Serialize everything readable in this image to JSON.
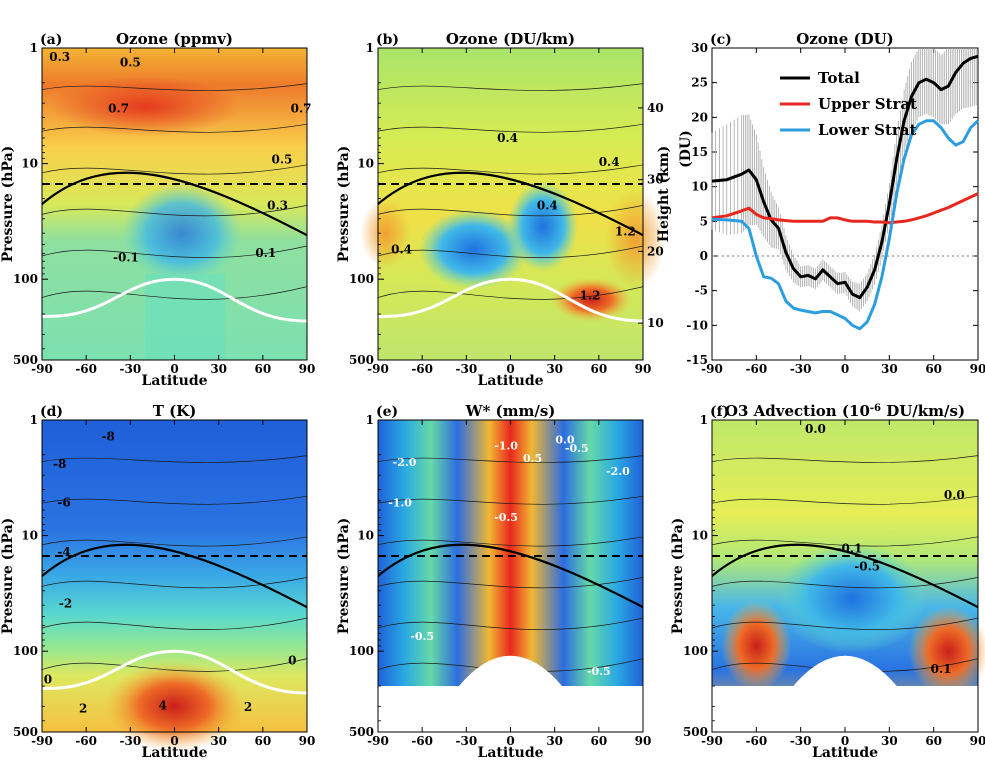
{
  "chart_data": [
    {
      "panel": "(a)",
      "type": "heatmap",
      "title": "Ozone (ppmv)",
      "xlabel": "Latitude",
      "ylabel": "Pressure (hPa)",
      "xlim": [
        -90,
        90
      ],
      "xticks": [
        "-90",
        "-60",
        "-30",
        "0",
        "30",
        "60",
        "90"
      ],
      "yscale": "log",
      "ylim": [
        500,
        1
      ],
      "yticks": [
        "1",
        "10",
        "100",
        "500"
      ],
      "contour_labels": [
        {
          "text": "0.3",
          "x": -78,
          "p": 1.3
        },
        {
          "text": "0.5",
          "x": -30,
          "p": 1.45
        },
        {
          "text": "0.7",
          "x": -38,
          "p": 3.6
        },
        {
          "text": "0.7",
          "x": 86,
          "p": 3.6
        },
        {
          "text": "0.5",
          "x": 73,
          "p": 10
        },
        {
          "text": "0.3",
          "x": 70,
          "p": 25
        },
        {
          "text": "0.1",
          "x": 62,
          "p": 64
        },
        {
          "text": "-0.1",
          "x": -33,
          "p": 70
        }
      ],
      "reference_line_hPa": 15
    },
    {
      "panel": "(b)",
      "type": "heatmap",
      "title": "Ozone (DU/km)",
      "xlabel": "Latitude",
      "ylabel": "Pressure (hPa)",
      "y2label": "Height (km)",
      "xlim": [
        -90,
        90
      ],
      "xticks": [
        "-90",
        "-60",
        "-30",
        "0",
        "30",
        "60",
        "90"
      ],
      "yscale": "log",
      "ylim": [
        500,
        1
      ],
      "yticks": [
        "1",
        "10",
        "100",
        "500"
      ],
      "y2ticks": [
        "10",
        "20",
        "30",
        "40"
      ],
      "contour_labels": [
        {
          "text": "0.4",
          "x": -2,
          "p": 6.5
        },
        {
          "text": "0.4",
          "x": 67,
          "p": 10.5
        },
        {
          "text": "0.4",
          "x": 25,
          "p": 25
        },
        {
          "text": "0.4",
          "x": -74,
          "p": 60
        },
        {
          "text": "1.2",
          "x": 78,
          "p": 42
        },
        {
          "text": "1.2",
          "x": 54,
          "p": 150
        }
      ],
      "reference_line_hPa": 15
    },
    {
      "panel": "(c)",
      "type": "line",
      "title": "Ozone (DU)",
      "xlabel": "",
      "ylabel": "(DU)",
      "xlim": [
        -90,
        90
      ],
      "ylim": [
        -15,
        30
      ],
      "xticks": [
        "-90",
        "-60",
        "-30",
        "0",
        "30",
        "60",
        "90"
      ],
      "yticks": [
        "-15",
        "-10",
        "-5",
        "0",
        "5",
        "10",
        "15",
        "20",
        "25",
        "30"
      ],
      "x": [
        -90,
        -80,
        -70,
        -65,
        -60,
        -55,
        -50,
        -45,
        -40,
        -35,
        -30,
        -25,
        -20,
        -15,
        -10,
        -5,
        0,
        5,
        10,
        15,
        20,
        25,
        30,
        35,
        40,
        45,
        50,
        55,
        60,
        65,
        70,
        75,
        80,
        85,
        90
      ],
      "series": [
        {
          "name": "Total",
          "color": "#000000",
          "values": [
            10.8,
            11.0,
            11.8,
            12.4,
            11.0,
            7.8,
            5.2,
            4.0,
            0.5,
            -1.8,
            -3.0,
            -2.8,
            -3.3,
            -2.0,
            -3.0,
            -4.0,
            -3.8,
            -5.5,
            -6.0,
            -4.5,
            -2.0,
            2.0,
            7.5,
            14.0,
            19.5,
            23.0,
            25.0,
            25.5,
            25.0,
            24.0,
            24.5,
            26.5,
            27.8,
            28.5,
            28.8
          ]
        },
        {
          "name": "Upper Strat",
          "color": "#e8281e",
          "values": [
            5.5,
            5.8,
            6.5,
            6.9,
            6.0,
            5.5,
            5.4,
            5.2,
            5.1,
            5.0,
            5.0,
            5.0,
            5.0,
            5.0,
            5.5,
            5.5,
            5.2,
            5.0,
            5.0,
            5.0,
            4.9,
            4.9,
            4.8,
            4.9,
            5.0,
            5.2,
            5.5,
            5.8,
            6.2,
            6.6,
            7.0,
            7.5,
            8.0,
            8.5,
            9.0
          ]
        },
        {
          "name": "Lower Strat",
          "color": "#2c9ee0",
          "values": [
            5.3,
            5.2,
            5.0,
            4.0,
            0.0,
            -3.0,
            -3.2,
            -4.0,
            -6.5,
            -7.5,
            -7.8,
            -8.0,
            -8.2,
            -8.0,
            -8.0,
            -8.5,
            -9.0,
            -10.0,
            -10.5,
            -9.5,
            -7.0,
            -3.0,
            2.5,
            9.0,
            14.0,
            17.5,
            19.0,
            19.5,
            19.5,
            18.5,
            17.0,
            16.0,
            16.5,
            18.5,
            19.5
          ]
        }
      ],
      "total_uncertainty": [
        7,
        8,
        8.5,
        8,
        6.5,
        5,
        4,
        3,
        2.5,
        2,
        1.5,
        1.5,
        1.5,
        1.5,
        1.5,
        1.5,
        1.5,
        1.8,
        2,
        2,
        2.2,
        2.5,
        3,
        4,
        4.5,
        5,
        5,
        5,
        5,
        5,
        5.5,
        6,
        6.5,
        7,
        7
      ],
      "legend_position": "top-left"
    },
    {
      "panel": "(d)",
      "type": "heatmap",
      "title": "T (K)",
      "xlabel": "Latitude",
      "ylabel": "Pressure (hPa)",
      "xlim": [
        -90,
        90
      ],
      "xticks": [
        "-90",
        "-60",
        "-30",
        "0",
        "30",
        "60",
        "90"
      ],
      "yscale": "log",
      "ylim": [
        500,
        1
      ],
      "yticks": [
        "1",
        "10",
        "100",
        "500"
      ],
      "contour_labels": [
        {
          "text": "-8",
          "x": -45,
          "p": 1.5
        },
        {
          "text": "-8",
          "x": -78,
          "p": 2.6
        },
        {
          "text": "-6",
          "x": -75,
          "p": 5.6
        },
        {
          "text": "-4",
          "x": -75,
          "p": 15
        },
        {
          "text": "-2",
          "x": -74,
          "p": 42
        },
        {
          "text": "0",
          "x": -86,
          "p": 190
        },
        {
          "text": "0",
          "x": 80,
          "p": 130
        },
        {
          "text": "2",
          "x": -62,
          "p": 340
        },
        {
          "text": "2",
          "x": 50,
          "p": 330
        },
        {
          "text": "4",
          "x": -8,
          "p": 320
        }
      ],
      "reference_line_hPa": 15
    },
    {
      "panel": "(e)",
      "type": "heatmap",
      "title": "W* (mm/s)",
      "xlabel": "Latitude",
      "ylabel": "Pressure (hPa)",
      "xlim": [
        -90,
        90
      ],
      "xticks": [
        "-90",
        "-60",
        "-30",
        "0",
        "30",
        "60",
        "90"
      ],
      "yscale": "log",
      "ylim": [
        500,
        1
      ],
      "yticks": [
        "1",
        "10",
        "100",
        "500"
      ],
      "contour_labels": [
        {
          "text": "-2.0",
          "x": -72,
          "p": 2.5
        },
        {
          "text": "-1.0",
          "x": -3,
          "p": 1.8
        },
        {
          "text": "0.5",
          "x": 15,
          "p": 2.3
        },
        {
          "text": "-0.5",
          "x": 45,
          "p": 1.9
        },
        {
          "text": "0.0",
          "x": 37,
          "p": 1.6
        },
        {
          "text": "-2.0",
          "x": 73,
          "p": 3
        },
        {
          "text": "-1.0",
          "x": -75,
          "p": 5.6
        },
        {
          "text": "-0.5",
          "x": -3,
          "p": 7.5
        },
        {
          "text": "-0.5",
          "x": -60,
          "p": 80
        },
        {
          "text": "-0.5",
          "x": 60,
          "p": 160
        }
      ],
      "reference_line_hPa": 15
    },
    {
      "panel": "(f)",
      "type": "heatmap",
      "title": "O3 Advection (10",
      "title_sup": "-6",
      "title_tail": " DU/km/s)",
      "xlabel": "Latitude",
      "ylabel": "Pressure (hPa)",
      "xlim": [
        -90,
        90
      ],
      "xticks": [
        "-90",
        "-60",
        "-30",
        "0",
        "30",
        "60",
        "90"
      ],
      "yscale": "log",
      "ylim": [
        500,
        1
      ],
      "yticks": [
        "1",
        "10",
        "100",
        "500"
      ],
      "contour_labels": [
        {
          "text": "0.0",
          "x": -20,
          "p": 1.3
        },
        {
          "text": "0.0",
          "x": 74,
          "p": 4.8
        },
        {
          "text": "-0.1",
          "x": 3,
          "p": 14
        },
        {
          "text": "-0.5",
          "x": 15,
          "p": 20
        },
        {
          "text": "0.1",
          "x": 65,
          "p": 155
        }
      ],
      "reference_line_hPa": 15
    }
  ],
  "legend": {
    "total": "Total",
    "upper": "Upper Strat",
    "lower": "Lower Strat"
  },
  "colors": {
    "total": "#000000",
    "upper": "#e8281e",
    "lower": "#2c9ee0"
  }
}
